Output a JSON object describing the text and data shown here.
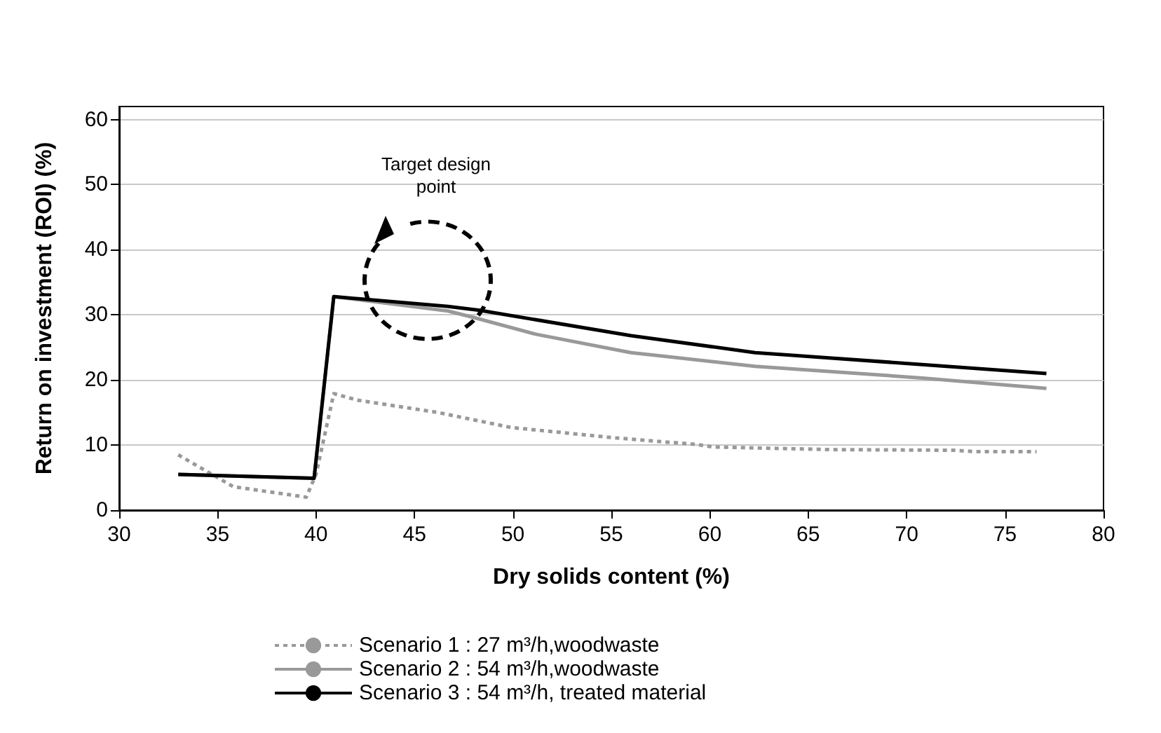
{
  "chart_data": {
    "type": "line",
    "xlabel": "Dry solids content (%)",
    "ylabel": "Return on investment (ROI) (%)",
    "xlim": [
      30,
      80
    ],
    "xticks": [
      30,
      35,
      40,
      45,
      50,
      55,
      60,
      65,
      70,
      75,
      80
    ],
    "ylim": [
      0,
      62
    ],
    "yticks": [
      0,
      10,
      20,
      30,
      40,
      50,
      60
    ],
    "grid": "y",
    "legend": "bottom",
    "marker": "none",
    "annotations": [
      "Target design\npoint"
    ],
    "series": [
      {
        "name": "Scenario 1 : 27 m³/h,woodwaste",
        "color": "#999999",
        "line_style": "dotted",
        "x": [
          33,
          35.8,
          39.5,
          40,
          40.9,
          42.1,
          46.2,
          49.9,
          55.2,
          59.3,
          60.2,
          66.2,
          72.4,
          73.4,
          76.6
        ],
        "values": [
          8.5,
          3.6,
          2,
          5.5,
          17.9,
          16.9,
          15,
          12.7,
          11.1,
          10.1,
          9.7,
          9.3,
          9.2,
          9,
          9
        ]
      },
      {
        "name": "Scenario 2 : 54 m³/h,woodwaste",
        "color": "#999999",
        "line_style": "solid",
        "x": [
          33,
          39.9,
          40.9,
          46.7,
          48,
          51.2,
          56,
          62.3,
          70.8,
          77.1
        ],
        "values": [
          5.5,
          4.9,
          32.8,
          30.6,
          29.6,
          27,
          24.2,
          22.1,
          20.3,
          18.7
        ]
      },
      {
        "name": "Scenario 3 : 54 m³/h, treated material",
        "color": "#000000",
        "line_style": "solid",
        "x": [
          33,
          39.9,
          40.9,
          46.7,
          48.3,
          56,
          62.3,
          77.1
        ],
        "values": [
          5.5,
          4.9,
          32.8,
          31.3,
          30.7,
          26.8,
          24.2,
          21
        ]
      }
    ]
  }
}
